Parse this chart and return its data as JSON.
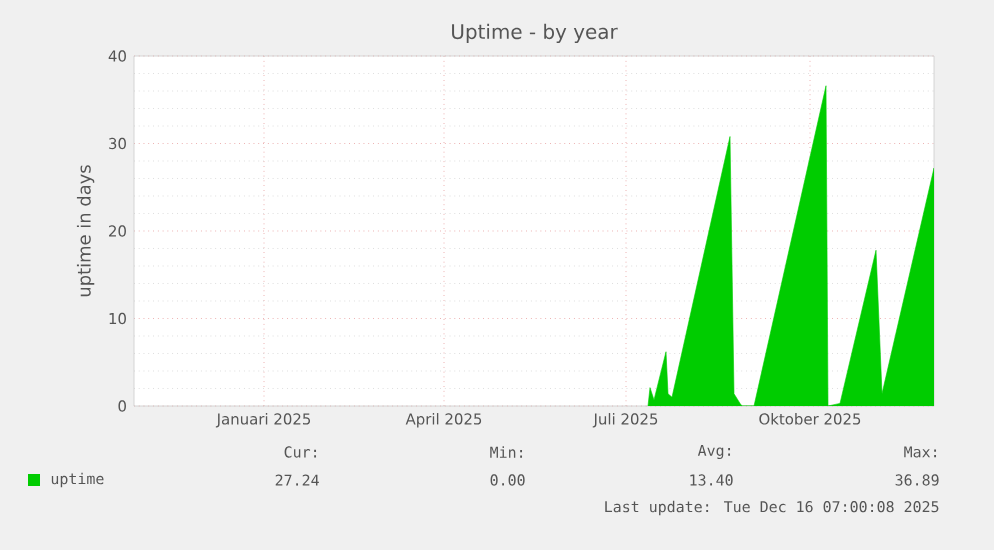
{
  "chart_data": {
    "type": "area",
    "title": "Uptime - by year",
    "ylabel": "uptime in days",
    "x": [
      "2025-07-26",
      "2025-07-27",
      "2025-07-29",
      "2025-08-04",
      "2025-08-05",
      "2025-08-07",
      "2025-09-05",
      "2025-09-07",
      "2025-09-10",
      "2025-09-11",
      "2025-09-17",
      "2025-10-23",
      "2025-10-24",
      "2025-10-30",
      "2025-11-17",
      "2025-11-20",
      "2025-12-16"
    ],
    "series": [
      {
        "name": "uptime",
        "color": "#00cc00",
        "values": [
          0,
          2.1,
          0.7,
          6.2,
          1.4,
          1.0,
          30.8,
          1.4,
          0.3,
          0,
          0,
          36.6,
          0,
          0.3,
          17.8,
          1.4,
          27.2
        ]
      }
    ],
    "xlim": [
      "2024-11-11",
      "2025-12-16"
    ],
    "xticks": [
      {
        "value": "2025-01-15",
        "label": "Januari 2025"
      },
      {
        "value": "2025-04-15",
        "label": "April 2025"
      },
      {
        "value": "2025-07-15",
        "label": "Juli 2025"
      },
      {
        "value": "2025-10-15",
        "label": "Oktober 2025"
      }
    ],
    "ylim": [
      0,
      40
    ],
    "yticks": [
      0,
      10,
      20,
      30,
      40
    ],
    "grid": true,
    "legend": "bottom",
    "annotations": [
      "Cur:",
      "Min:",
      "Avg:",
      "Max:",
      "27.24",
      "0.00",
      "13.40",
      "36.89",
      "Last update: Tue Dec 16 07:00:08 2025"
    ]
  }
}
